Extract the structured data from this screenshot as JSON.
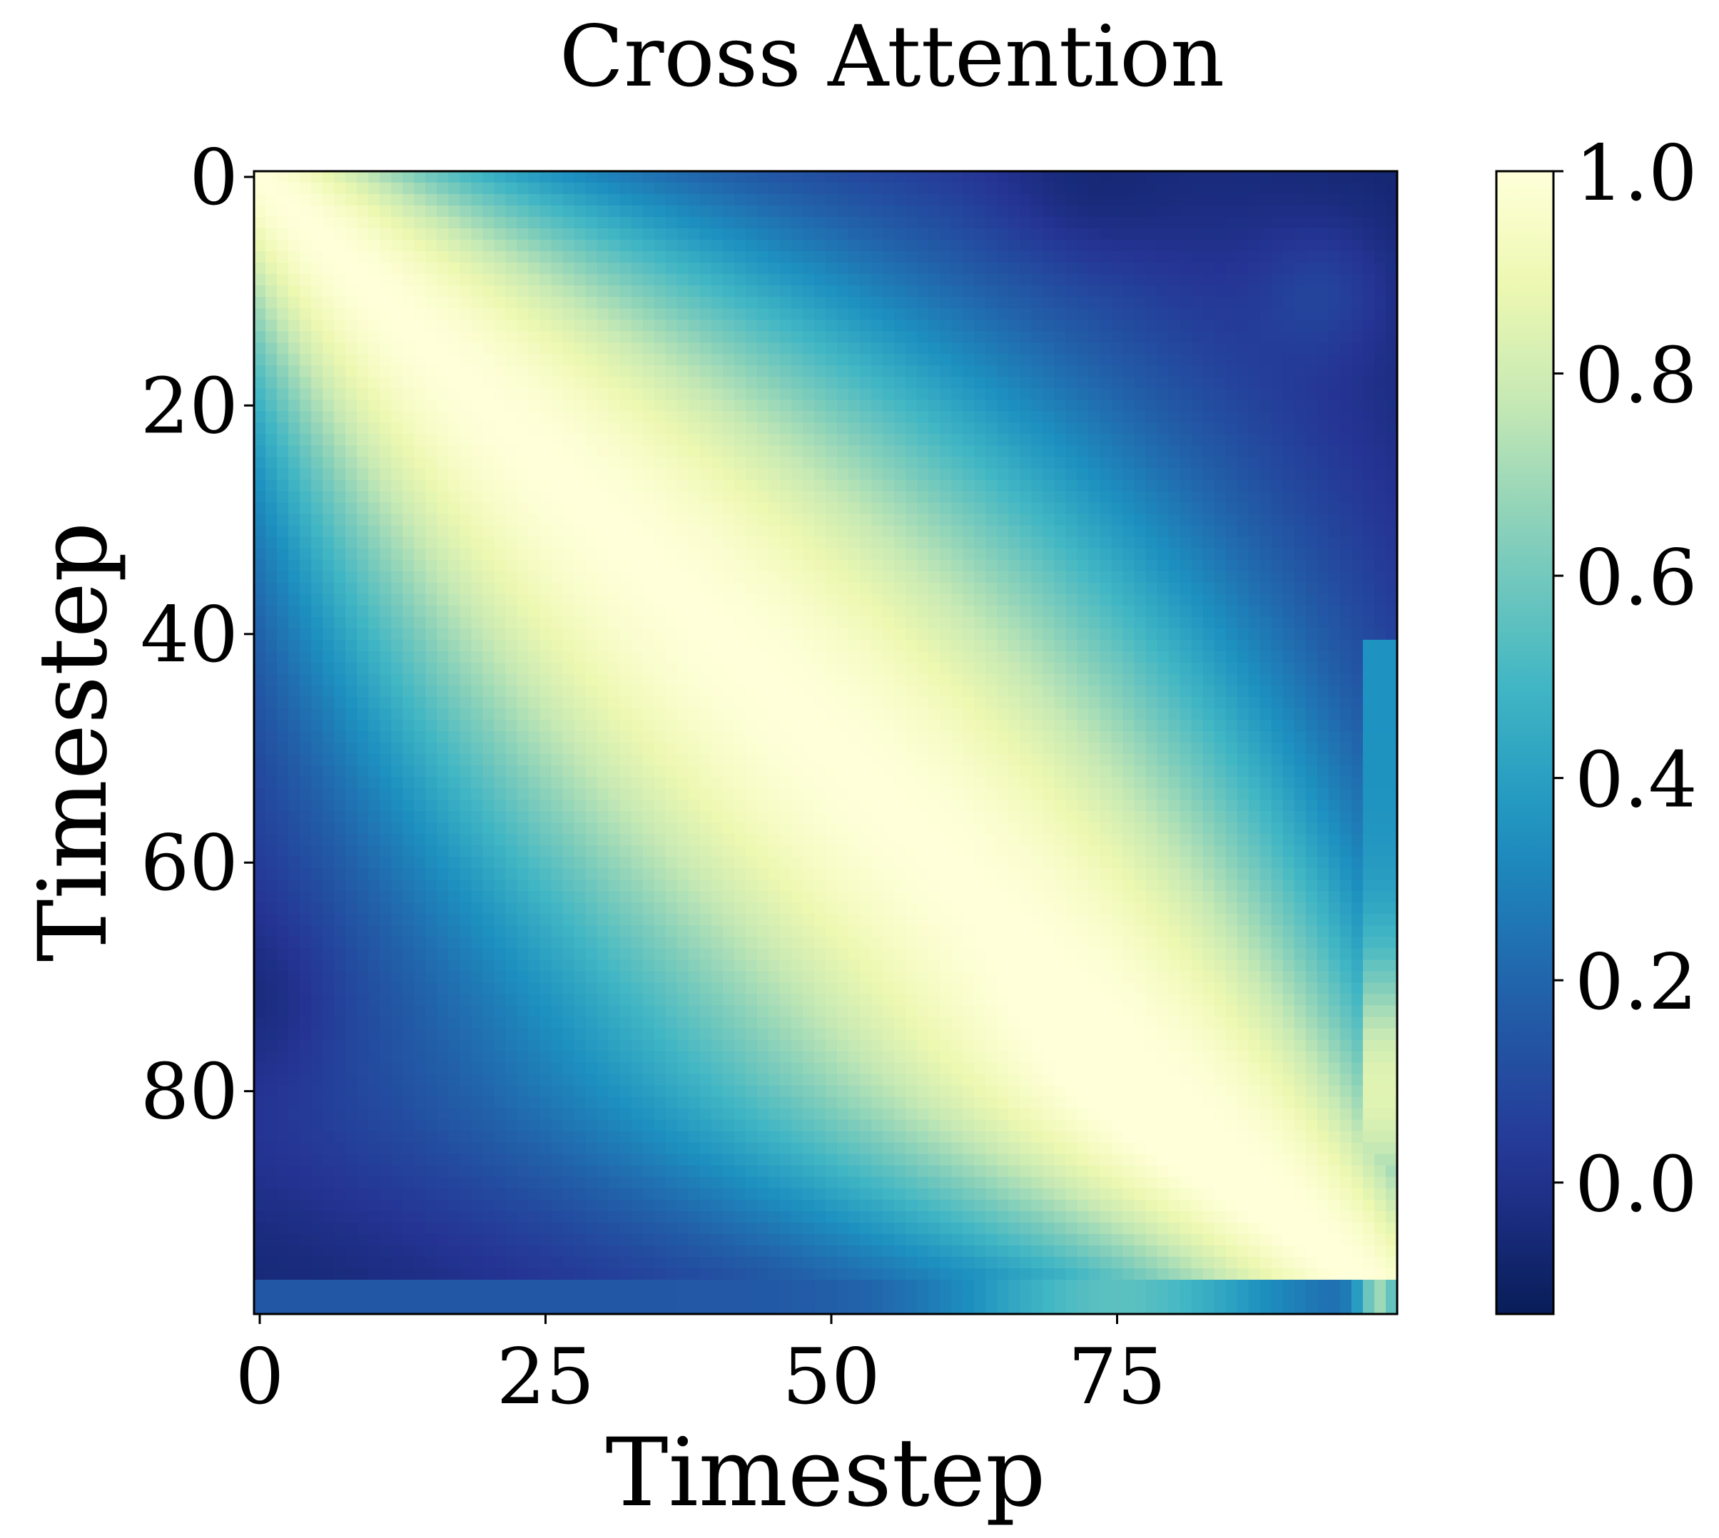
{
  "chart_data": {
    "type": "heatmap",
    "title": "Cross Attention",
    "xlabel": "Timestep",
    "ylabel": "Timestep",
    "rows": 100,
    "cols": 100,
    "x_ticks": [
      {
        "value": 0,
        "label": "0"
      },
      {
        "value": 25,
        "label": "25"
      },
      {
        "value": 50,
        "label": "50"
      },
      {
        "value": 75,
        "label": "75"
      }
    ],
    "y_ticks": [
      {
        "value": 0,
        "label": "0"
      },
      {
        "value": 20,
        "label": "20"
      },
      {
        "value": 40,
        "label": "40"
      },
      {
        "value": 60,
        "label": "60"
      },
      {
        "value": 80,
        "label": "80"
      }
    ],
    "colorbar": {
      "vmin": -0.13,
      "vmax": 1.0,
      "ticks": [
        {
          "value": 0.0,
          "label": "0.0"
        },
        {
          "value": 0.2,
          "label": "0.2"
        },
        {
          "value": 0.4,
          "label": "0.4"
        },
        {
          "value": 0.6,
          "label": "0.6"
        },
        {
          "value": 0.8,
          "label": "0.8"
        },
        {
          "value": 1.0,
          "label": "1.0"
        }
      ]
    },
    "colormap_name": "YlGnBu",
    "colormap_stops": [
      "#081d58",
      "#253494",
      "#225ea8",
      "#1d91c0",
      "#41b6c4",
      "#7fcdbb",
      "#c7e9b4",
      "#edf8b1",
      "#ffffd9"
    ],
    "colormap_positions": [
      0,
      0.13,
      0.27,
      0.42,
      0.55,
      0.67,
      0.8,
      0.9,
      1.0
    ],
    "anchor_values": {
      "cells": [
        {
          "row": 0,
          "col": 0,
          "value": 1.0
        },
        {
          "row": 30,
          "col": 30,
          "value": 1.0
        },
        {
          "row": 60,
          "col": 60,
          "value": 1.0
        },
        {
          "row": 95,
          "col": 95,
          "value": 0.95
        },
        {
          "row": 1,
          "col": 72,
          "value": -0.1
        },
        {
          "row": 72,
          "col": 0,
          "value": -0.1
        },
        {
          "row": 35,
          "col": 90,
          "value": 0.02
        },
        {
          "row": 93,
          "col": 35,
          "value": 0.02
        },
        {
          "row": 80,
          "col": 90,
          "value": 0.9
        },
        {
          "row": 99,
          "col": 0,
          "value": 0.15
        }
      ]
    }
  }
}
